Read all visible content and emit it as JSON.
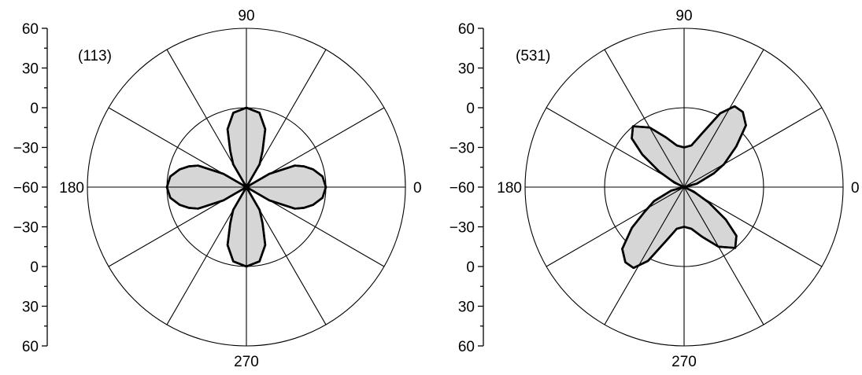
{
  "chart_data": [
    {
      "type": "polar",
      "title": "(113)",
      "angle_labels": [
        "0",
        "90",
        "180",
        "270"
      ],
      "radial_axis": {
        "tick_labels": [
          "60",
          "30",
          "0",
          "−30",
          "−60",
          "−30",
          "0",
          "30",
          "60"
        ],
        "range": [
          -60,
          60
        ],
        "inner_circle": 0
      },
      "spokes_deg": [
        0,
        30,
        60,
        90,
        120,
        150,
        180,
        210,
        240,
        270,
        300,
        330
      ],
      "series": [
        {
          "theta_deg": [
            0,
            8,
            15,
            20,
            24,
            30,
            45,
            60,
            66,
            72,
            80,
            90,
            100,
            108,
            114,
            120,
            135,
            150,
            156,
            160,
            165,
            172,
            180,
            188,
            195,
            200,
            204,
            210,
            225,
            240,
            246,
            252,
            260,
            270,
            280,
            288,
            294,
            300,
            315,
            330,
            336,
            340,
            345,
            352,
            360
          ],
          "r": [
            0,
            -2,
            -8,
            -14,
            -20,
            -40,
            -60,
            -40,
            -30,
            -14,
            -3,
            0,
            -3,
            -14,
            -30,
            -40,
            -60,
            -40,
            -20,
            -14,
            -8,
            -2,
            0,
            -2,
            -8,
            -14,
            -20,
            -40,
            -60,
            -40,
            -30,
            -14,
            -3,
            0,
            -3,
            -14,
            -30,
            -40,
            -60,
            -40,
            -20,
            -14,
            -8,
            -2,
            0
          ]
        }
      ]
    },
    {
      "type": "polar",
      "title": "(531)",
      "angle_labels": [
        "0",
        "90",
        "180",
        "270"
      ],
      "radial_axis": {
        "tick_labels": [
          "60",
          "30",
          "0",
          "−30",
          "−60",
          "−30",
          "0",
          "30",
          "60"
        ],
        "range": [
          -60,
          60
        ],
        "inner_circle": 0
      },
      "spokes_deg": [
        0,
        30,
        60,
        90,
        120,
        150,
        180,
        210,
        240,
        270,
        300,
        330
      ],
      "series": [
        {
          "theta_deg": [
            0,
            15,
            25,
            30,
            38,
            45,
            52,
            58,
            64,
            72,
            80,
            90,
            100,
            110,
            120,
            130,
            137,
            142,
            148,
            155,
            165,
            180,
            195,
            205,
            212,
            218,
            225,
            232,
            238,
            244,
            252,
            260,
            270,
            280,
            290,
            300,
            310,
            317,
            322,
            328,
            335,
            345,
            360
          ],
          "r": [
            -60,
            -50,
            -35,
            -25,
            -10,
            6,
            12,
            12,
            2,
            -18,
            -28,
            -30,
            -28,
            -20,
            -8,
            0,
            -6,
            -20,
            -38,
            -52,
            -60,
            -60,
            -50,
            -35,
            -25,
            -10,
            6,
            12,
            12,
            2,
            -18,
            -28,
            -30,
            -28,
            -20,
            -8,
            0,
            -6,
            -20,
            -38,
            -52,
            -60,
            -60
          ]
        }
      ]
    }
  ]
}
